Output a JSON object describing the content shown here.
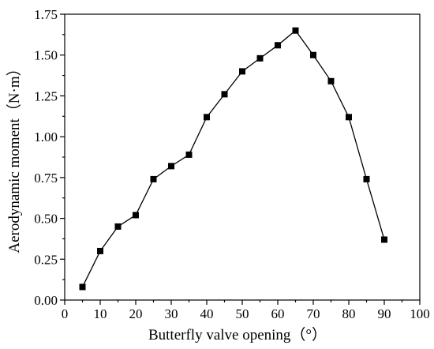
{
  "chart_data": {
    "type": "line",
    "title": "",
    "xlabel": "Butterfly valve opening（°）",
    "ylabel": "Aerodynamic moment（N·m）",
    "xlim": [
      0,
      100
    ],
    "ylim": [
      0,
      1.75
    ],
    "xticks": [
      0,
      10,
      20,
      30,
      40,
      50,
      60,
      70,
      80,
      90,
      100
    ],
    "yticks": [
      0.0,
      0.25,
      0.5,
      0.75,
      1.0,
      1.25,
      1.5,
      1.75
    ],
    "xtick_labels": [
      "0",
      "10",
      "20",
      "30",
      "40",
      "50",
      "60",
      "70",
      "80",
      "90",
      "100"
    ],
    "ytick_labels": [
      "0.00",
      "0.25",
      "0.50",
      "0.75",
      "1.00",
      "1.25",
      "1.50",
      "1.75"
    ],
    "grid": false,
    "marker": "square",
    "series": [
      {
        "x": [
          5,
          10,
          15,
          20,
          25,
          30,
          35,
          40,
          45,
          50,
          55,
          60,
          65,
          70,
          75,
          80,
          85,
          90
        ],
        "y": [
          0.08,
          0.3,
          0.45,
          0.52,
          0.74,
          0.82,
          0.89,
          1.12,
          1.26,
          1.4,
          1.48,
          1.56,
          1.65,
          1.5,
          1.34,
          1.12,
          0.74,
          0.37
        ],
        "color": "#000000"
      }
    ]
  }
}
